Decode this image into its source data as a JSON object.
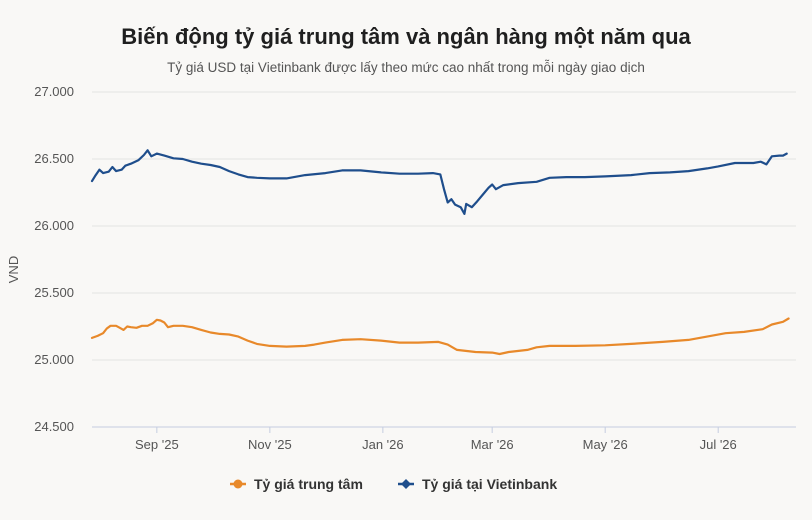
{
  "chart_data": {
    "type": "line",
    "title": "Biến động tỷ giá trung tâm và ngân hàng một năm qua",
    "subtitle": "Tỷ giá USD tại Vietinbank được lấy theo mức cao nhất trong mỗi ngày giao dịch",
    "xlabel": "",
    "ylabel": "VND",
    "ylim": [
      24500,
      27000
    ],
    "yticks": [
      {
        "value": 24500,
        "label": "24.500"
      },
      {
        "value": 25000,
        "label": "25.000"
      },
      {
        "value": 25500,
        "label": "25.500"
      },
      {
        "value": 26000,
        "label": "26.000"
      },
      {
        "value": 26500,
        "label": "26.500"
      },
      {
        "value": 27000,
        "label": "27.000"
      }
    ],
    "xlim": [
      "2025-07-28",
      "2026-08-12"
    ],
    "xticks": [
      {
        "date": "2025-09-01",
        "label": "Sep '25"
      },
      {
        "date": "2025-11-01",
        "label": "Nov '25"
      },
      {
        "date": "2026-01-01",
        "label": "Jan '26"
      },
      {
        "date": "2026-03-01",
        "label": "Mar '26"
      },
      {
        "date": "2026-05-01",
        "label": "May '26"
      },
      {
        "date": "2026-07-01",
        "label": "Jul '26"
      }
    ],
    "grid": true,
    "legend_position": "bottom-center",
    "series": [
      {
        "name": "Tỷ giá trung tâm",
        "color": "#e8892a",
        "marker": "circle",
        "points": [
          [
            "2025-07-28",
            25165
          ],
          [
            "2025-07-31",
            25180
          ],
          [
            "2025-08-03",
            25200
          ],
          [
            "2025-08-05",
            25235
          ],
          [
            "2025-08-07",
            25255
          ],
          [
            "2025-08-10",
            25255
          ],
          [
            "2025-08-12",
            25240
          ],
          [
            "2025-08-14",
            25225
          ],
          [
            "2025-08-16",
            25250
          ],
          [
            "2025-08-18",
            25245
          ],
          [
            "2025-08-21",
            25240
          ],
          [
            "2025-08-24",
            25255
          ],
          [
            "2025-08-27",
            25255
          ],
          [
            "2025-08-30",
            25275
          ],
          [
            "2025-09-01",
            25300
          ],
          [
            "2025-09-03",
            25295
          ],
          [
            "2025-09-05",
            25280
          ],
          [
            "2025-09-07",
            25245
          ],
          [
            "2025-09-10",
            25255
          ],
          [
            "2025-09-15",
            25255
          ],
          [
            "2025-09-20",
            25245
          ],
          [
            "2025-09-25",
            25225
          ],
          [
            "2025-09-30",
            25205
          ],
          [
            "2025-10-05",
            25195
          ],
          [
            "2025-10-10",
            25190
          ],
          [
            "2025-10-15",
            25175
          ],
          [
            "2025-10-20",
            25145
          ],
          [
            "2025-10-25",
            25120
          ],
          [
            "2025-11-01",
            25105
          ],
          [
            "2025-11-10",
            25100
          ],
          [
            "2025-11-20",
            25105
          ],
          [
            "2025-11-25",
            25115
          ],
          [
            "2025-12-01",
            25130
          ],
          [
            "2025-12-10",
            25150
          ],
          [
            "2025-12-20",
            25155
          ],
          [
            "2025-12-31",
            25145
          ],
          [
            "2026-01-10",
            25130
          ],
          [
            "2026-01-20",
            25130
          ],
          [
            "2026-01-31",
            25135
          ],
          [
            "2026-02-05",
            25115
          ],
          [
            "2026-02-10",
            25075
          ],
          [
            "2026-02-20",
            25060
          ],
          [
            "2026-03-01",
            25055
          ],
          [
            "2026-03-05",
            25045
          ],
          [
            "2026-03-10",
            25060
          ],
          [
            "2026-03-20",
            25075
          ],
          [
            "2026-03-25",
            25095
          ],
          [
            "2026-04-01",
            25105
          ],
          [
            "2026-04-15",
            25105
          ],
          [
            "2026-05-01",
            25110
          ],
          [
            "2026-05-15",
            25120
          ],
          [
            "2026-06-01",
            25135
          ],
          [
            "2026-06-15",
            25150
          ],
          [
            "2026-06-25",
            25175
          ],
          [
            "2026-07-05",
            25200
          ],
          [
            "2026-07-15",
            25210
          ],
          [
            "2026-07-25",
            25230
          ],
          [
            "2026-07-30",
            25265
          ],
          [
            "2026-08-05",
            25285
          ],
          [
            "2026-08-08",
            25310
          ]
        ]
      },
      {
        "name": "Tỷ giá tại Vietinbank",
        "color": "#1f4e8c",
        "marker": "diamond",
        "points": [
          [
            "2025-07-28",
            26335
          ],
          [
            "2025-07-30",
            26380
          ],
          [
            "2025-08-01",
            26420
          ],
          [
            "2025-08-03",
            26395
          ],
          [
            "2025-08-06",
            26405
          ],
          [
            "2025-08-08",
            26440
          ],
          [
            "2025-08-10",
            26410
          ],
          [
            "2025-08-13",
            26420
          ],
          [
            "2025-08-15",
            26450
          ],
          [
            "2025-08-18",
            26465
          ],
          [
            "2025-08-22",
            26490
          ],
          [
            "2025-08-25",
            26530
          ],
          [
            "2025-08-27",
            26565
          ],
          [
            "2025-08-29",
            26520
          ],
          [
            "2025-09-01",
            26540
          ],
          [
            "2025-09-05",
            26525
          ],
          [
            "2025-09-10",
            26505
          ],
          [
            "2025-09-15",
            26500
          ],
          [
            "2025-09-20",
            26480
          ],
          [
            "2025-09-25",
            26465
          ],
          [
            "2025-09-30",
            26455
          ],
          [
            "2025-10-05",
            26440
          ],
          [
            "2025-10-10",
            26410
          ],
          [
            "2025-10-15",
            26385
          ],
          [
            "2025-10-20",
            26365
          ],
          [
            "2025-10-25",
            26360
          ],
          [
            "2025-11-01",
            26355
          ],
          [
            "2025-11-10",
            26355
          ],
          [
            "2025-11-20",
            26380
          ],
          [
            "2025-12-01",
            26395
          ],
          [
            "2025-12-10",
            26415
          ],
          [
            "2025-12-20",
            26415
          ],
          [
            "2025-12-31",
            26400
          ],
          [
            "2026-01-10",
            26390
          ],
          [
            "2026-01-20",
            26390
          ],
          [
            "2026-01-28",
            26395
          ],
          [
            "2026-02-01",
            26385
          ],
          [
            "2026-02-03",
            26275
          ],
          [
            "2026-02-05",
            26175
          ],
          [
            "2026-02-07",
            26200
          ],
          [
            "2026-02-09",
            26160
          ],
          [
            "2026-02-12",
            26140
          ],
          [
            "2026-02-14",
            26090
          ],
          [
            "2026-02-15",
            26165
          ],
          [
            "2026-02-18",
            26140
          ],
          [
            "2026-02-21",
            26185
          ],
          [
            "2026-02-24",
            26235
          ],
          [
            "2026-02-27",
            26285
          ],
          [
            "2026-03-01",
            26310
          ],
          [
            "2026-03-03",
            26275
          ],
          [
            "2026-03-07",
            26305
          ],
          [
            "2026-03-15",
            26320
          ],
          [
            "2026-03-25",
            26330
          ],
          [
            "2026-04-01",
            26360
          ],
          [
            "2026-04-10",
            26365
          ],
          [
            "2026-04-20",
            26365
          ],
          [
            "2026-05-01",
            26370
          ],
          [
            "2026-05-15",
            26380
          ],
          [
            "2026-05-25",
            26395
          ],
          [
            "2026-06-05",
            26400
          ],
          [
            "2026-06-15",
            26410
          ],
          [
            "2026-06-25",
            26430
          ],
          [
            "2026-07-01",
            26445
          ],
          [
            "2026-07-10",
            26470
          ],
          [
            "2026-07-20",
            26470
          ],
          [
            "2026-07-24",
            26480
          ],
          [
            "2026-07-27",
            26460
          ],
          [
            "2026-07-30",
            26520
          ],
          [
            "2026-08-03",
            26525
          ],
          [
            "2026-08-05",
            26525
          ],
          [
            "2026-08-07",
            26540
          ]
        ]
      }
    ]
  }
}
